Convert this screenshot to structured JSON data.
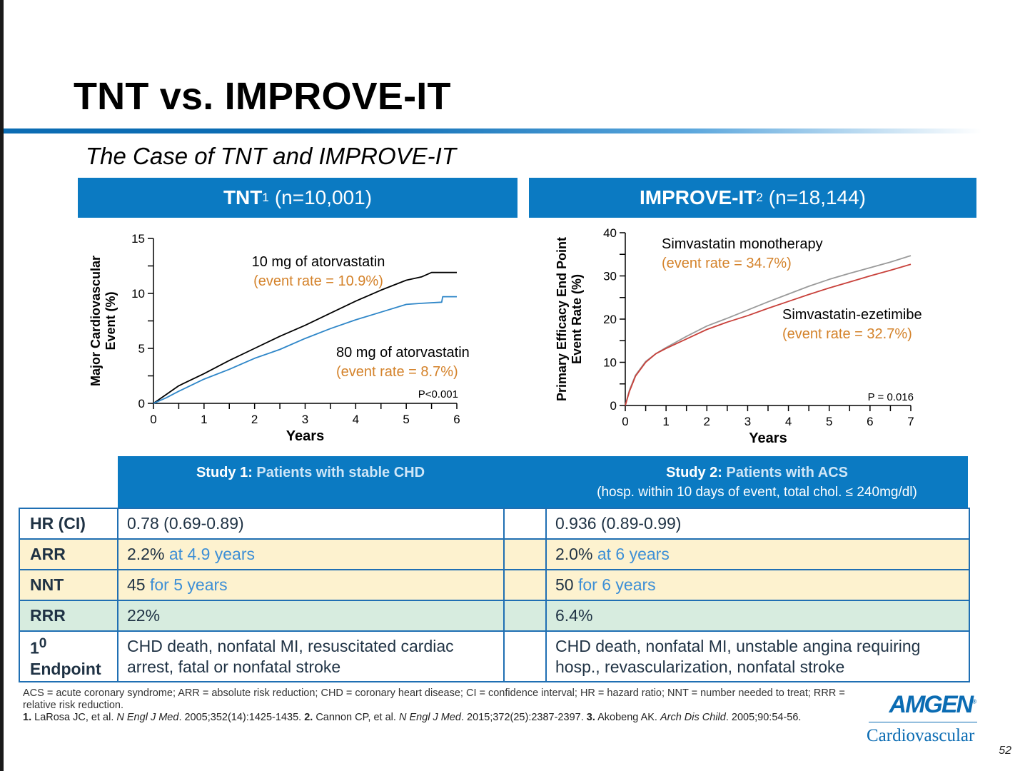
{
  "title": "TNT vs. IMPROVE-IT",
  "subtitle": "The Case of TNT and IMPROVE-IT",
  "panels": {
    "tnt": {
      "name": "TNT",
      "sup": "1",
      "n": "(n=10,001)"
    },
    "improve": {
      "name": "IMPROVE-IT",
      "sup": "2",
      "n": "(n=18,144)"
    }
  },
  "chart_data": [
    {
      "type": "line",
      "xlabel": "Years",
      "ylabel": [
        "Major Cardiovascular",
        "Event (%)"
      ],
      "xlim": [
        0,
        6
      ],
      "ylim": [
        0,
        15
      ],
      "xticks": [
        0,
        1,
        2,
        3,
        4,
        5,
        6
      ],
      "yticks": [
        0,
        5,
        10,
        15
      ],
      "colors": {
        "10mg": "#000000",
        "80mg": "#2e86c8",
        "rate": "#d4822a"
      },
      "series": [
        {
          "name": "10 mg of atorvastatin",
          "rate_label": "(event rate  = 10.9%)",
          "color": "#000000",
          "x": [
            0,
            0.25,
            0.5,
            1,
            1.5,
            2,
            2.5,
            3,
            3.5,
            4,
            4.5,
            5,
            5.3,
            5.5,
            5.6,
            6
          ],
          "y": [
            0,
            0.8,
            1.6,
            2.7,
            3.9,
            5.0,
            6.1,
            7.1,
            8.2,
            9.3,
            10.3,
            11.2,
            11.5,
            11.9,
            11.9,
            11.9
          ]
        },
        {
          "name": "80 mg of atorvastatin",
          "rate_label": "(event rate = 8.7%)",
          "color": "#2e86c8",
          "x": [
            0,
            0.25,
            0.5,
            1,
            1.5,
            2,
            2.5,
            3,
            3.5,
            4,
            4.5,
            5,
            5.3,
            5.7,
            5.72,
            6
          ],
          "y": [
            0,
            0.5,
            1.1,
            2.2,
            3.1,
            4.1,
            4.9,
            5.9,
            6.8,
            7.6,
            8.3,
            9.0,
            9.1,
            9.2,
            9.7,
            9.7
          ]
        }
      ],
      "annotation": "P<0.001"
    },
    {
      "type": "line",
      "xlabel": "Years",
      "ylabel": [
        "Primary Efficacy End Point",
        "Event Rate (%)"
      ],
      "xlim": [
        0,
        7
      ],
      "ylim": [
        0,
        40
      ],
      "xticks": [
        0,
        1,
        2,
        3,
        4,
        5,
        6,
        7
      ],
      "yticks": [
        0,
        10,
        20,
        30,
        40
      ],
      "colors": {
        "mono": "#9a9a9a",
        "combo": "#c8403a",
        "rate": "#d4822a"
      },
      "series": [
        {
          "name": "Simvastatin monotherapy",
          "rate_label": "(event rate  = 34.7%)",
          "color": "#9a9a9a",
          "x": [
            0,
            0.1,
            0.25,
            0.5,
            0.75,
            1,
            1.5,
            2,
            2.5,
            3,
            3.5,
            4,
            4.5,
            5,
            5.5,
            6,
            6.5,
            7
          ],
          "y": [
            0,
            3.5,
            7,
            10.2,
            12.0,
            13.4,
            16.0,
            18.4,
            20.2,
            22.1,
            24.0,
            25.8,
            27.6,
            29.2,
            30.6,
            31.9,
            33.2,
            34.7
          ]
        },
        {
          "name": "Simvastatin-ezetimibe",
          "rate_label": "(event rate  = 32.7%)",
          "color": "#c8403a",
          "x": [
            0,
            0.1,
            0.25,
            0.5,
            0.75,
            1,
            1.5,
            2,
            2.5,
            3,
            3.5,
            4,
            4.5,
            5,
            5.5,
            6,
            6.5,
            7
          ],
          "y": [
            0,
            3.2,
            6.8,
            10.0,
            12.0,
            13.2,
            15.4,
            17.6,
            19.3,
            20.8,
            22.5,
            24.1,
            25.7,
            27.2,
            28.6,
            30.0,
            31.3,
            32.7
          ]
        }
      ],
      "annotation": "P = 0.016"
    }
  ],
  "table": {
    "header": {
      "study1_label": "Study 1:",
      "study1_title": "Patients with stable CHD",
      "study2_label": "Study 2:",
      "study2_title": "Patients with ACS",
      "study2_sub": "(hosp. within 10 days of event, total chol. ≤ 240mg/dl)"
    },
    "rows": [
      {
        "label": "HR (CI)",
        "s1": "0.78 (0.69-0.89)",
        "s1_blue": "",
        "s2": "0.936 (0.89-0.99)",
        "s2_blue": ""
      },
      {
        "label": "ARR",
        "s1": "2.2%",
        "s1_blue": "at 4.9 years",
        "s2": "2.0%",
        "s2_blue": "at 6 years"
      },
      {
        "label": "NNT",
        "s1": "45",
        "s1_blue": "for 5 years",
        "s2": "50",
        "s2_blue": "for 6 years"
      },
      {
        "label": "RRR",
        "s1": "22%",
        "s1_blue": "",
        "s2": "6.4%",
        "s2_blue": ""
      },
      {
        "label_num": "1",
        "label_sup": "0",
        "label_line2": "Endpoint",
        "s1_l1": "CHD death, nonfatal MI, resuscitated cardiac",
        "s1_l2": "arrest, fatal or nonfatal stroke",
        "s2_l1": "CHD death, nonfatal MI, unstable angina requiring",
        "s2_l2": "hosp., revascularization, nonfatal stroke"
      }
    ]
  },
  "footnotes": {
    "abbreviations": "ACS = acute coronary syndrome; ARR = absolute risk reduction; CHD = coronary heart disease; CI = confidence interval; HR = hazard ratio; NNT = number needed to treat; RRR = relative risk reduction.",
    "ref1_num": "1.",
    "ref1_a": "LaRosa JC, et al.",
    "ref1_journal": "N Engl J Med",
    "ref1_b": ". 2005;352(14):1425-1435.",
    "ref2_num": "2.",
    "ref2_a": "Cannon CP, et al.",
    "ref2_journal": "N Engl J Med",
    "ref2_b": ". 2015;372(25):2387-2397.",
    "ref3_num": "3.",
    "ref3_a": "Akobeng AK.",
    "ref3_journal": "Arch Dis Child",
    "ref3_b": ". 2005;90:54-56."
  },
  "logo": {
    "brand": "AMGEN",
    "reg": "®",
    "division": "Cardiovascular"
  },
  "page_number": "52"
}
